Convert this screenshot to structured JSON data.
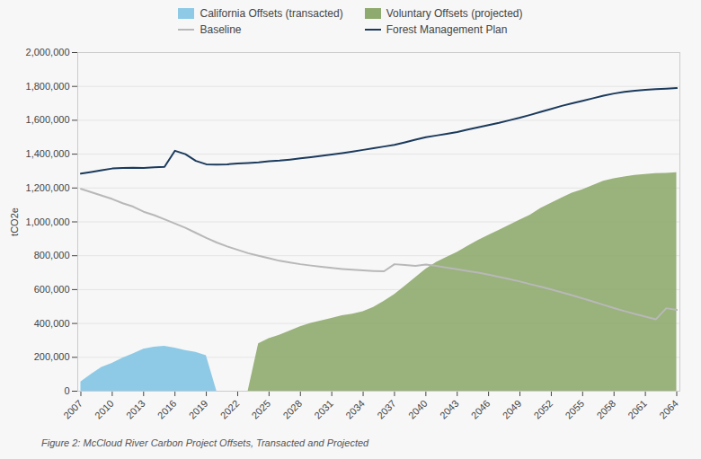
{
  "chart_data": {
    "type": "line",
    "ylabel": "tCO2e",
    "caption": "Figure 2: McCloud River Carbon Project Offsets, Transacted and Projected",
    "x": [
      2007,
      2008,
      2009,
      2010,
      2011,
      2012,
      2013,
      2014,
      2015,
      2016,
      2017,
      2018,
      2019,
      2020,
      2021,
      2022,
      2023,
      2024,
      2025,
      2026,
      2027,
      2028,
      2029,
      2030,
      2031,
      2032,
      2033,
      2034,
      2035,
      2036,
      2037,
      2038,
      2039,
      2040,
      2041,
      2042,
      2043,
      2044,
      2045,
      2046,
      2047,
      2048,
      2049,
      2050,
      2051,
      2052,
      2053,
      2054,
      2055,
      2056,
      2057,
      2058,
      2059,
      2060,
      2061,
      2062,
      2063,
      2064
    ],
    "series": [
      {
        "name": "California Offsets (transacted)",
        "type": "area",
        "color": "#8ecae6",
        "values": [
          55000,
          100000,
          140000,
          165000,
          195000,
          220000,
          248000,
          260000,
          265000,
          255000,
          240000,
          230000,
          210000,
          0,
          0,
          0,
          0,
          0,
          0,
          0,
          0,
          0,
          0,
          0,
          0,
          0,
          0,
          0,
          0,
          0,
          0,
          0,
          0,
          0,
          0,
          0,
          0,
          0,
          0,
          0,
          0,
          0,
          0,
          0,
          0,
          0,
          0,
          0,
          0,
          0,
          0,
          0,
          0,
          0,
          0,
          0,
          0,
          0
        ]
      },
      {
        "name": "Voluntary Offsets (projected)",
        "type": "area",
        "color": "#8faa6e",
        "values": [
          0,
          0,
          0,
          0,
          0,
          0,
          0,
          0,
          0,
          0,
          0,
          0,
          0,
          0,
          0,
          0,
          0,
          280000,
          310000,
          330000,
          355000,
          380000,
          400000,
          415000,
          430000,
          445000,
          455000,
          470000,
          495000,
          530000,
          570000,
          620000,
          670000,
          720000,
          760000,
          790000,
          820000,
          855000,
          890000,
          920000,
          950000,
          980000,
          1010000,
          1040000,
          1080000,
          1110000,
          1140000,
          1170000,
          1190000,
          1215000,
          1240000,
          1255000,
          1265000,
          1275000,
          1280000,
          1285000,
          1287000,
          1290000
        ]
      },
      {
        "name": "Baseline",
        "type": "line",
        "color": "#b8b8b8",
        "values": [
          1195000,
          1175000,
          1155000,
          1135000,
          1110000,
          1090000,
          1060000,
          1040000,
          1015000,
          990000,
          965000,
          935000,
          905000,
          878000,
          855000,
          835000,
          815000,
          800000,
          785000,
          770000,
          760000,
          750000,
          742000,
          735000,
          728000,
          722000,
          717000,
          713000,
          710000,
          708000,
          750000,
          745000,
          740000,
          748000,
          740000,
          730000,
          720000,
          710000,
          700000,
          688000,
          675000,
          662000,
          648000,
          632000,
          617000,
          601000,
          584000,
          566000,
          548000,
          529000,
          510000,
          491000,
          473000,
          456000,
          440000,
          424000,
          490000,
          480000
        ]
      },
      {
        "name": "Forest Management Plan",
        "type": "line",
        "color": "#1b3a5c",
        "values": [
          1285000,
          1295000,
          1305000,
          1315000,
          1318000,
          1320000,
          1318000,
          1322000,
          1325000,
          1420000,
          1400000,
          1360000,
          1340000,
          1338000,
          1340000,
          1345000,
          1348000,
          1352000,
          1358000,
          1362000,
          1368000,
          1375000,
          1382000,
          1390000,
          1398000,
          1406000,
          1415000,
          1425000,
          1435000,
          1445000,
          1455000,
          1470000,
          1485000,
          1500000,
          1510000,
          1520000,
          1530000,
          1545000,
          1558000,
          1572000,
          1585000,
          1600000,
          1615000,
          1632000,
          1650000,
          1667000,
          1685000,
          1700000,
          1715000,
          1730000,
          1745000,
          1758000,
          1768000,
          1775000,
          1780000,
          1784000,
          1787000,
          1790000
        ]
      }
    ],
    "xlim": [
      2006.7,
      2064.3
    ],
    "xticks": [
      2007,
      2010,
      2013,
      2016,
      2019,
      2022,
      2025,
      2028,
      2031,
      2034,
      2037,
      2040,
      2043,
      2046,
      2049,
      2052,
      2055,
      2058,
      2061,
      2064
    ],
    "ylim": [
      0,
      2000000
    ],
    "yticks": [
      0,
      {
        "value": 200000,
        "label": "200,000"
      },
      {
        "value": 400000,
        "label": "400,000"
      },
      {
        "value": 600000,
        "label": "600,000"
      },
      {
        "value": 800000,
        "label": "800,000"
      },
      {
        "value": 1000000,
        "label": "1,000,000"
      },
      {
        "value": 1200000,
        "label": "1,200,000"
      },
      {
        "value": 1400000,
        "label": "1,400,000"
      },
      {
        "value": 1600000,
        "label": "1,600,000"
      },
      {
        "value": 1800000,
        "label": "1,800,000"
      },
      {
        "value": 2000000,
        "label": "2,000,000"
      }
    ],
    "grid": true,
    "legend": "top"
  }
}
